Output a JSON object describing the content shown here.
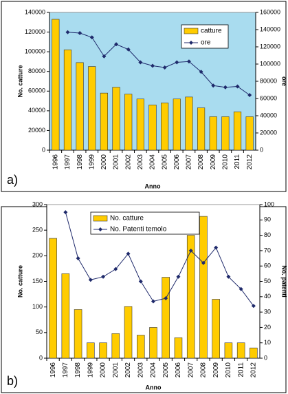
{
  "chart_data": [
    {
      "type": "combo",
      "label": "a)",
      "x_label": "Anno",
      "y_label": "No. catture",
      "y2_label": "ore",
      "plot_background": "#a9dcef",
      "categories": [
        "1996",
        "1997",
        "1998",
        "1999",
        "2000",
        "2001",
        "2002",
        "2003",
        "2004",
        "2005",
        "2006",
        "2007",
        "2008",
        "2009",
        "2010",
        "2011",
        "2012"
      ],
      "series": [
        {
          "name": "catture",
          "kind": "bar",
          "color": "#ffcc00",
          "values": [
            133000,
            102000,
            89000,
            85000,
            58000,
            64000,
            57000,
            52000,
            46000,
            48000,
            52000,
            54000,
            43000,
            34000,
            34000,
            39000,
            34000
          ]
        },
        {
          "name": "ore",
          "kind": "line",
          "axis": "y2",
          "color": "#1f2a6b",
          "values": [
            null,
            137000,
            136000,
            131000,
            109000,
            123000,
            117000,
            102000,
            98000,
            96000,
            102000,
            103000,
            91000,
            75000,
            73000,
            74000,
            64000
          ]
        }
      ],
      "ylim": [
        0,
        140000
      ],
      "yticks": [
        0,
        20000,
        40000,
        60000,
        80000,
        100000,
        120000,
        140000
      ],
      "y2lim": [
        0,
        160000
      ],
      "y2ticks": [
        0,
        20000,
        40000,
        60000,
        80000,
        100000,
        120000,
        140000,
        160000
      ]
    },
    {
      "type": "combo",
      "label": "b)",
      "x_label": "Anno",
      "y_label": "No. catture",
      "y2_label": "No. patenti",
      "plot_background": "#ffffff",
      "categories": [
        "1996",
        "1997",
        "1998",
        "1999",
        "2000",
        "2001",
        "2002",
        "2003",
        "2004",
        "2005",
        "2006",
        "2007",
        "2008",
        "2009",
        "2010",
        "2011",
        "2012"
      ],
      "series": [
        {
          "name": "No. catture",
          "kind": "bar",
          "color": "#ffcc00",
          "values": [
            234,
            165,
            95,
            30,
            30,
            48,
            101,
            45,
            60,
            158,
            40,
            240,
            277,
            115,
            30,
            30,
            20
          ]
        },
        {
          "name": "No. Patenti temolo",
          "kind": "line",
          "axis": "y2",
          "color": "#1f2a6b",
          "values": [
            null,
            95,
            65,
            51,
            53,
            58,
            68,
            50,
            37,
            39,
            53,
            70,
            62,
            72,
            53,
            45,
            34
          ]
        }
      ],
      "ylim": [
        0,
        300
      ],
      "yticks": [
        0,
        50,
        100,
        150,
        200,
        250,
        300
      ],
      "y2lim": [
        0,
        100
      ],
      "y2ticks": [
        0,
        10,
        20,
        30,
        40,
        50,
        60,
        70,
        80,
        90,
        100
      ]
    }
  ]
}
